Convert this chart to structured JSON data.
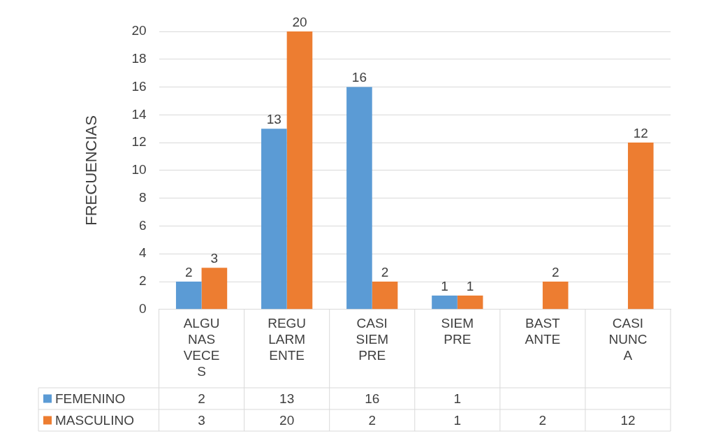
{
  "chart_data": {
    "type": "bar",
    "ylabel": "FRECUENCIAS",
    "categories": [
      "ALGUNAS VECES",
      "REGULARMENTE",
      "CASI SIEMPRE",
      "SIEMPRE",
      "BASTANTE",
      "CASI NUNCA"
    ],
    "series": [
      {
        "name": "FEMENINO",
        "color": "#5b9bd5",
        "values": [
          2,
          13,
          16,
          1,
          null,
          null
        ],
        "value_labels": [
          "2",
          "13",
          "16",
          "1",
          null,
          null
        ]
      },
      {
        "name": "MASCULINO",
        "color": "#ed7d31",
        "values": [
          3,
          20,
          2,
          1,
          2,
          12
        ],
        "value_labels": [
          "3",
          "20",
          "2",
          "1",
          "2",
          "12"
        ]
      }
    ],
    "ylim": [
      0,
      20
    ],
    "yticks": [
      0,
      2,
      4,
      6,
      8,
      10,
      12,
      14,
      16,
      18,
      20
    ],
    "grid": "y",
    "data_labels": true,
    "legend": "bottom"
  }
}
